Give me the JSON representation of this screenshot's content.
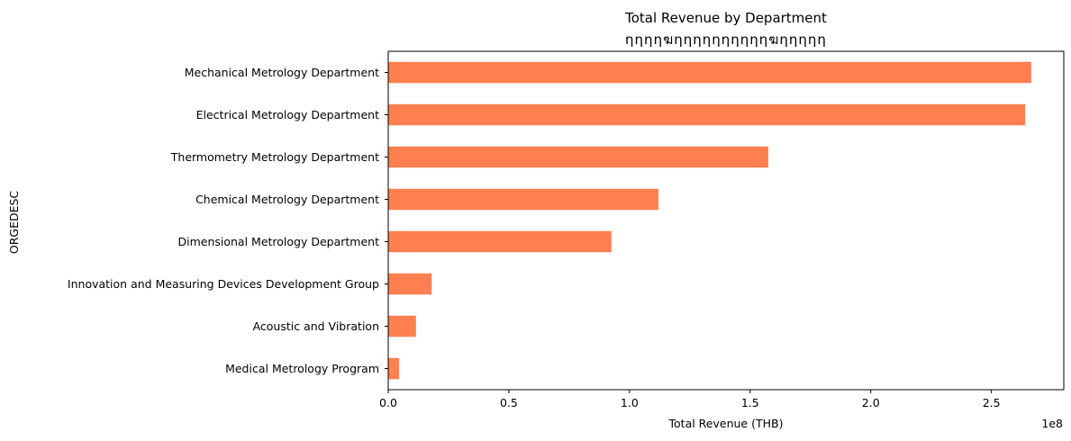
{
  "chart_data": {
    "type": "bar",
    "orientation": "horizontal",
    "title": "Total Revenue by Department",
    "subtitle": "ηηηηฆηηηηηηηηηηฆηηηηη",
    "xlabel": "Total Revenue (THB)",
    "ylabel": "ORGEDESC",
    "x_scale_note": "1e8",
    "xlim": [
      0,
      2.8
    ],
    "x_ticks": [
      0.0,
      0.5,
      1.0,
      1.5,
      2.0,
      2.5
    ],
    "x_tick_labels": [
      "0.0",
      "0.5",
      "1.0",
      "1.5",
      "2.0",
      "2.5"
    ],
    "categories": [
      "Mechanical Metrology Department",
      "Electrical Metrology Department",
      "Thermometry Metrology Department",
      "Chemical Metrology Department",
      "Dimensional Metrology Department",
      "Innovation and Measuring Devices Development Group",
      "Acoustic and Vibration",
      "Medical Metrology Program"
    ],
    "values": [
      2.665,
      2.64,
      1.575,
      1.12,
      0.925,
      0.18,
      0.115,
      0.045
    ],
    "bar_color": "#ff7f50",
    "grid": false,
    "legend": "none"
  }
}
